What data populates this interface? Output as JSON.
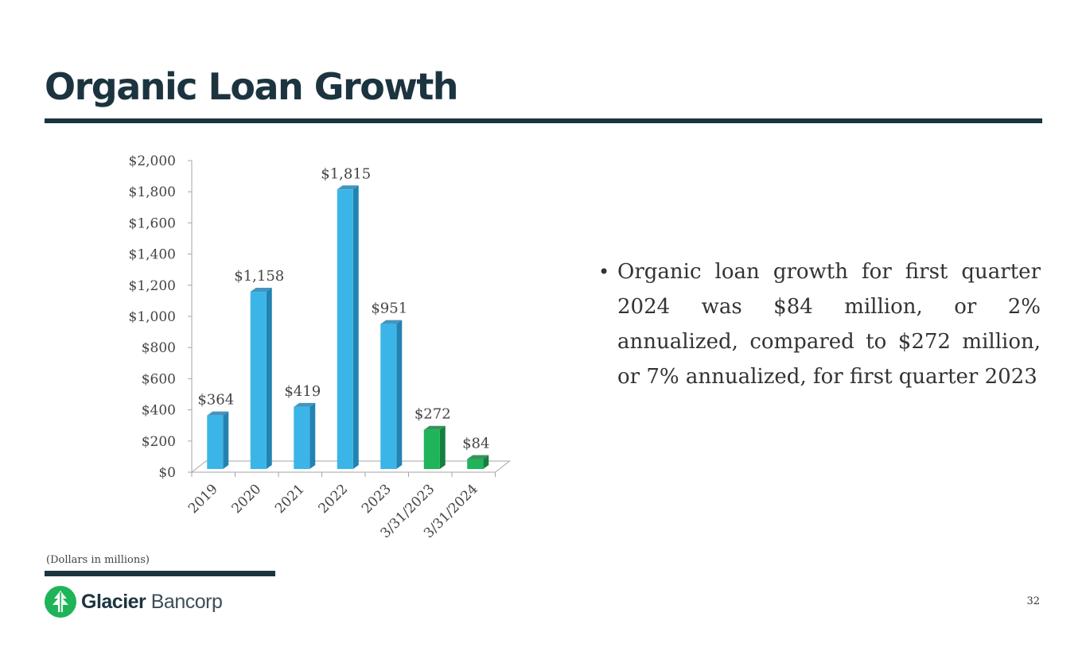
{
  "title": "Organic Loan Growth",
  "bullets": [
    "Organic loan growth for first quarter 2024 was $84 million, or 2% annualized, compared to $272 million, or 7% annualized, for first quarter 2023"
  ],
  "bullet_glyph": "•",
  "footnote": "(Dollars in millions)",
  "logo": {
    "name_bold": "Glacier",
    "name_light": "Bancorp"
  },
  "page_number": "32",
  "colors": {
    "primary_dark": "#1c3440",
    "bar_blue": "#3bb5e8",
    "bar_blue_side": "#2283b2",
    "bar_green": "#1fb45a",
    "bar_green_side": "#14803e",
    "logo_green": "#1fb45a"
  },
  "chart_data": {
    "type": "bar",
    "title": "",
    "xlabel": "",
    "ylabel": "",
    "ylim": [
      0,
      2000
    ],
    "y_tick_values": [
      0,
      200,
      400,
      600,
      800,
      1000,
      1200,
      1400,
      1600,
      1800,
      2000
    ],
    "y_tick_labels": [
      "$0",
      "$200",
      "$400",
      "$600",
      "$800",
      "$1,000",
      "$1,200",
      "$1,400",
      "$1,600",
      "$1,800",
      "$2,000"
    ],
    "categories": [
      "2019",
      "2020",
      "2021",
      "2022",
      "2023",
      "3/31/2023",
      "3/31/2024"
    ],
    "values": [
      364,
      1158,
      419,
      1815,
      951,
      272,
      84
    ],
    "data_labels": [
      "$364",
      "$1,158",
      "$419",
      "$1,815",
      "$951",
      "$272",
      "$84"
    ],
    "bar_colors": [
      "blue",
      "blue",
      "blue",
      "blue",
      "blue",
      "green",
      "green"
    ],
    "grid": false,
    "legend": "none"
  }
}
